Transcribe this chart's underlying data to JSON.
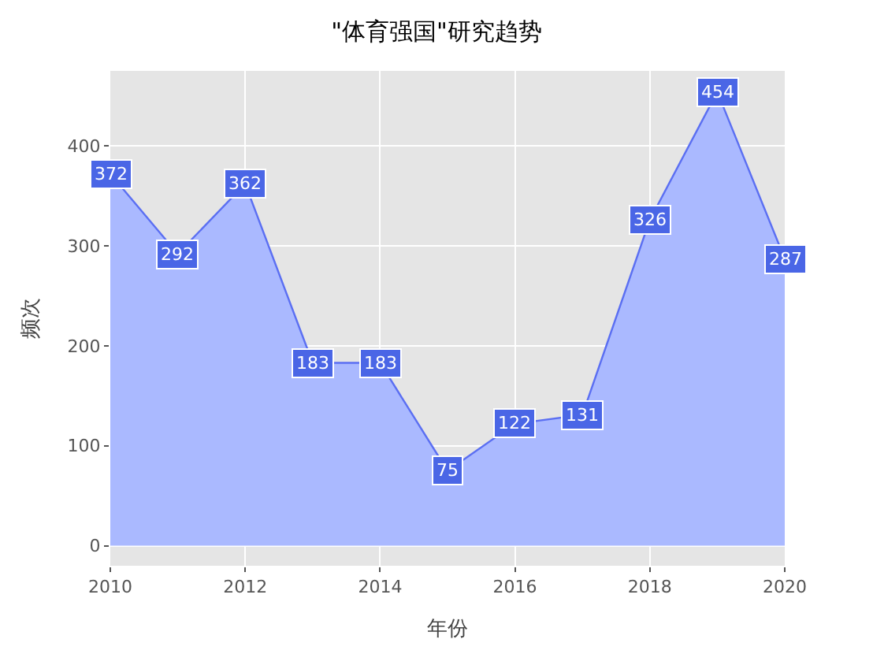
{
  "chart_data": {
    "type": "area",
    "title": "\"体育强国\"研究趋势",
    "xlabel": "年份",
    "ylabel": "频次",
    "x": [
      2010,
      2011,
      2012,
      2013,
      2014,
      2015,
      2016,
      2017,
      2018,
      2019,
      2020
    ],
    "series": [
      {
        "color": "#5b6ff2",
        "values": [
          372,
          292,
          362,
          183,
          183,
          75,
          122,
          131,
          326,
          454,
          287
        ]
      }
    ],
    "xlim": [
      2010,
      2020
    ],
    "xticks": [
      2010,
      2012,
      2014,
      2016,
      2018,
      2020
    ],
    "ylim": [
      -20,
      475
    ],
    "yticks": [
      0,
      100,
      200,
      300,
      400
    ],
    "grid": true,
    "data_labels": true,
    "line_style": "solid"
  }
}
